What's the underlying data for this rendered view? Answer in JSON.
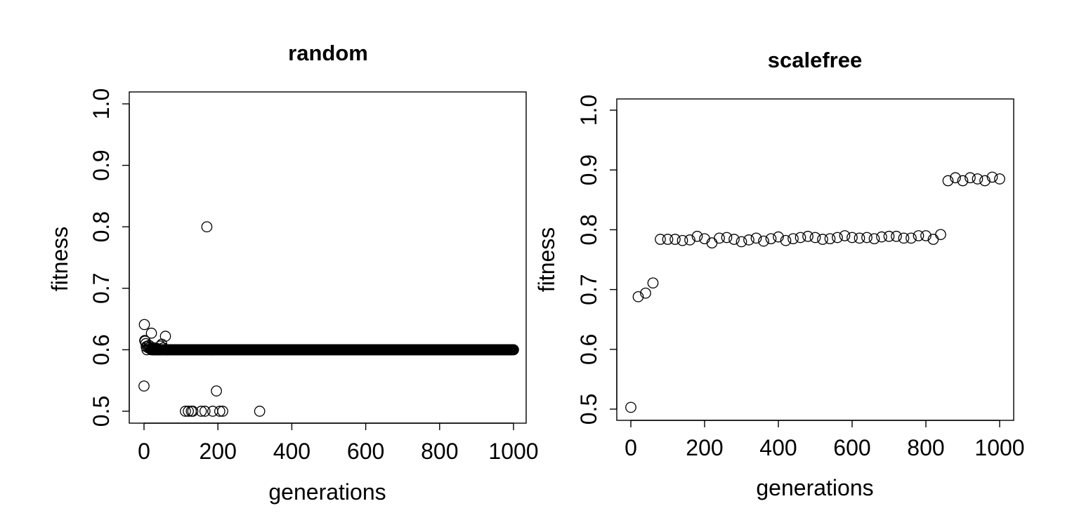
{
  "chart_data": [
    {
      "type": "scatter",
      "title": "random",
      "xlabel": "generations",
      "ylabel": "fitness",
      "xlim": [
        0,
        1000
      ],
      "ylim": [
        0.5,
        1.0
      ],
      "xticks": [
        "0",
        "200",
        "400",
        "600",
        "800",
        "1000"
      ],
      "yticks": [
        "0.5",
        "0.6",
        "0.7",
        "0.8",
        "0.9",
        "1.0"
      ],
      "marker": "open-circle",
      "points": [
        [
          0,
          0.541
        ],
        [
          1,
          0.641
        ],
        [
          2,
          0.615
        ],
        [
          3,
          0.614
        ],
        [
          5,
          0.61
        ],
        [
          6,
          0.605
        ],
        [
          8,
          0.6
        ],
        [
          10,
          0.606
        ],
        [
          12,
          0.603
        ],
        [
          14,
          0.607
        ],
        [
          16,
          0.604
        ],
        [
          18,
          0.601
        ],
        [
          20,
          0.627
        ],
        [
          22,
          0.602
        ],
        [
          25,
          0.601
        ],
        [
          28,
          0.603
        ],
        [
          32,
          0.6
        ],
        [
          36,
          0.602
        ],
        [
          40,
          0.6
        ],
        [
          44,
          0.606
        ],
        [
          48,
          0.609
        ],
        [
          52,
          0.603
        ],
        [
          58,
          0.622
        ],
        [
          62,
          0.6
        ],
        [
          112,
          0.5
        ],
        [
          120,
          0.5
        ],
        [
          128,
          0.5
        ],
        [
          132,
          0.5
        ],
        [
          155,
          0.5
        ],
        [
          165,
          0.5
        ],
        [
          170,
          0.8
        ],
        [
          182,
          0.6
        ],
        [
          186,
          0.5
        ],
        [
          196,
          0.533
        ],
        [
          205,
          0.5
        ],
        [
          213,
          0.5
        ],
        [
          313,
          0.5
        ]
      ],
      "baseline": {
        "x_start": 20,
        "x_end": 1000,
        "step": 2,
        "y": 0.6
      }
    },
    {
      "type": "scatter",
      "title": "scalefree",
      "xlabel": "generations",
      "ylabel": "fitness",
      "xlim": [
        0,
        1000
      ],
      "ylim": [
        0.5,
        1.0
      ],
      "xticks": [
        "0",
        "200",
        "400",
        "600",
        "800",
        "1000"
      ],
      "yticks": [
        "0.5",
        "0.6",
        "0.7",
        "0.8",
        "0.9",
        "1.0"
      ],
      "marker": "open-circle",
      "points": [
        [
          0,
          0.503
        ],
        [
          20,
          0.688
        ],
        [
          40,
          0.694
        ],
        [
          60,
          0.711
        ],
        [
          80,
          0.784
        ],
        [
          100,
          0.784
        ],
        [
          120,
          0.784
        ],
        [
          140,
          0.782
        ],
        [
          160,
          0.783
        ],
        [
          180,
          0.789
        ],
        [
          200,
          0.785
        ],
        [
          220,
          0.778
        ],
        [
          240,
          0.786
        ],
        [
          260,
          0.787
        ],
        [
          280,
          0.784
        ],
        [
          300,
          0.78
        ],
        [
          320,
          0.783
        ],
        [
          340,
          0.786
        ],
        [
          360,
          0.781
        ],
        [
          380,
          0.785
        ],
        [
          400,
          0.788
        ],
        [
          420,
          0.782
        ],
        [
          440,
          0.785
        ],
        [
          460,
          0.787
        ],
        [
          480,
          0.789
        ],
        [
          500,
          0.787
        ],
        [
          520,
          0.784
        ],
        [
          540,
          0.785
        ],
        [
          560,
          0.787
        ],
        [
          580,
          0.79
        ],
        [
          600,
          0.787
        ],
        [
          620,
          0.786
        ],
        [
          640,
          0.787
        ],
        [
          660,
          0.785
        ],
        [
          680,
          0.788
        ],
        [
          700,
          0.789
        ],
        [
          720,
          0.789
        ],
        [
          740,
          0.786
        ],
        [
          760,
          0.786
        ],
        [
          780,
          0.79
        ],
        [
          800,
          0.79
        ],
        [
          820,
          0.784
        ],
        [
          840,
          0.792
        ],
        [
          860,
          0.882
        ],
        [
          880,
          0.887
        ],
        [
          900,
          0.882
        ],
        [
          920,
          0.887
        ],
        [
          940,
          0.885
        ],
        [
          960,
          0.882
        ],
        [
          980,
          0.888
        ],
        [
          1000,
          0.885
        ]
      ]
    }
  ]
}
